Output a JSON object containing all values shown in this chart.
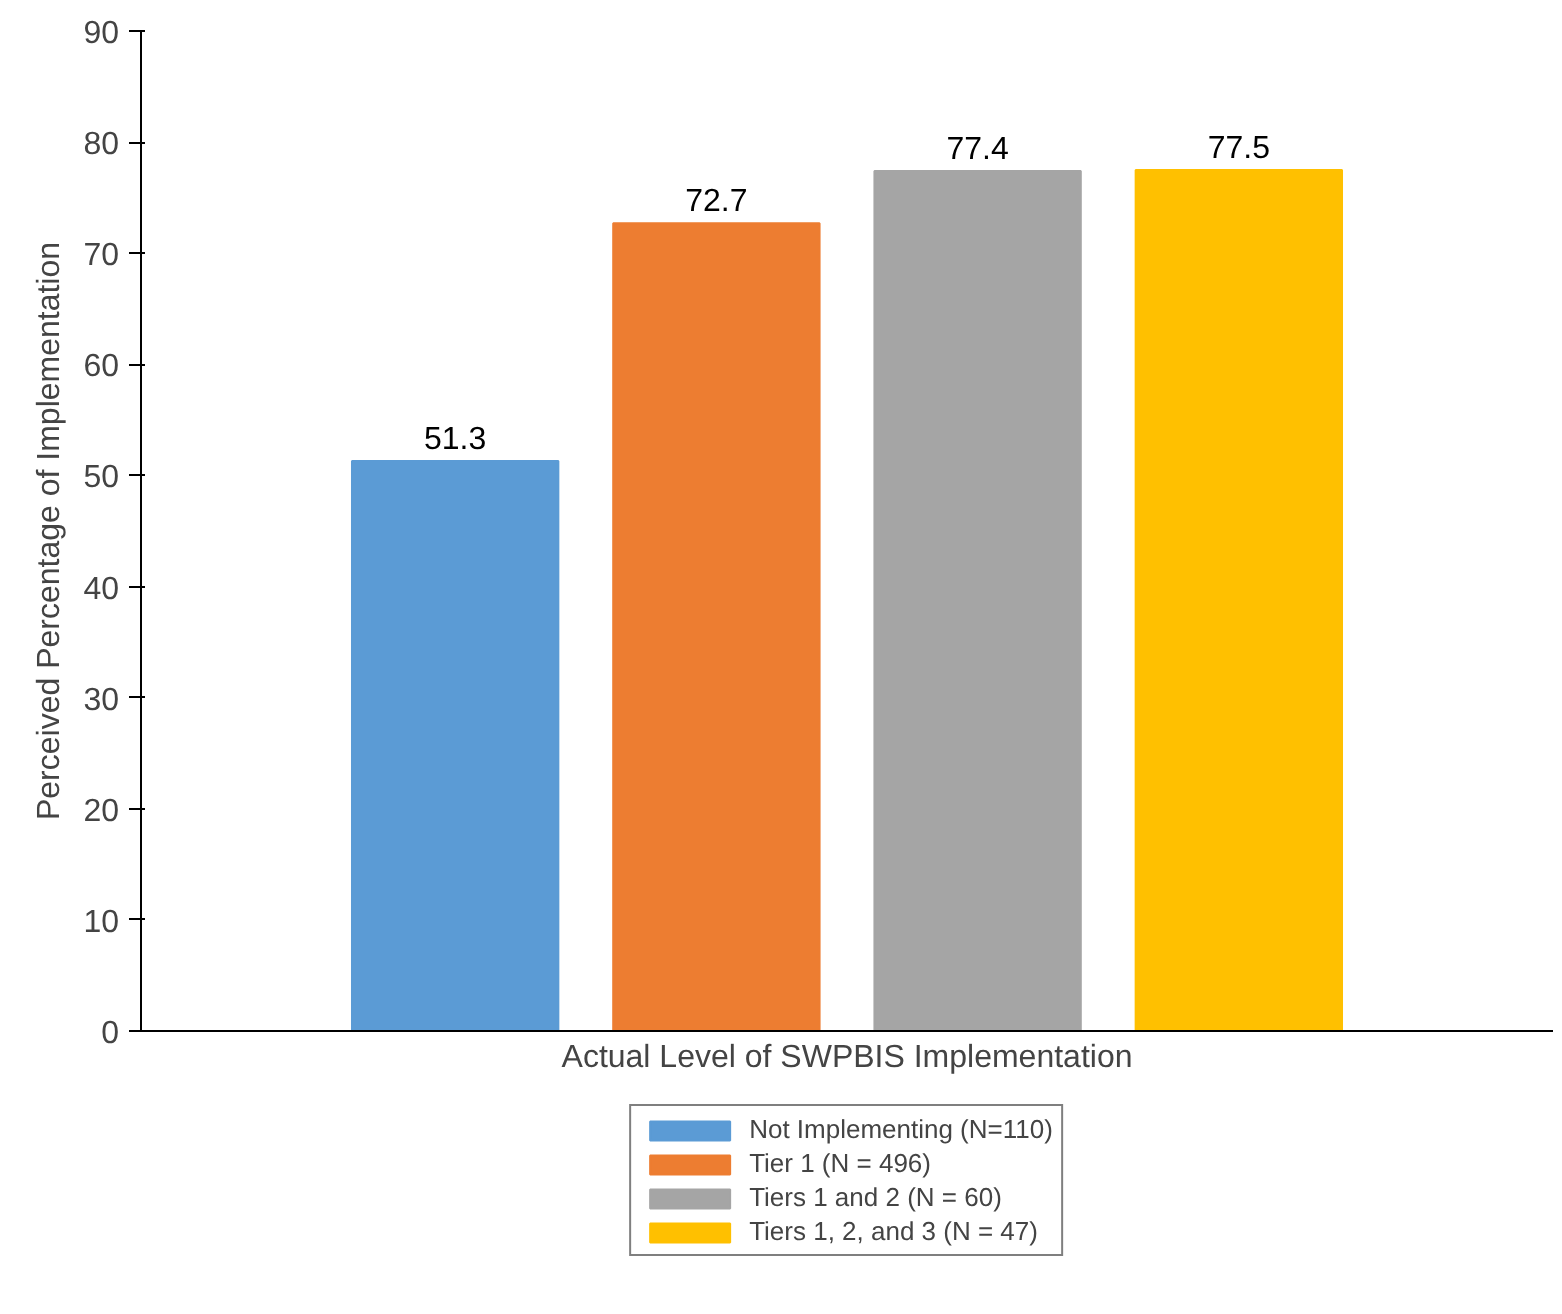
{
  "chart_data": {
    "type": "bar",
    "xlabel": "Actual Level of SWPBIS Implementation",
    "ylabel": "Perceived Percentage of Implementation",
    "categories": [
      null
    ],
    "series": [
      {
        "name": "Not Implementing (N=110)",
        "color": "#5b9bd5",
        "values": [
          51.3
        ]
      },
      {
        "name": "Tier 1 (N = 496)",
        "color": "#ed7d31",
        "values": [
          72.7
        ]
      },
      {
        "name": "Tiers 1 and 2 (N = 60)",
        "color": "#a5a5a5",
        "values": [
          77.4
        ]
      },
      {
        "name": "Tiers 1, 2, and 3 (N = 47)",
        "color": "#ffc000",
        "values": [
          77.5
        ]
      }
    ],
    "ylim": [
      0,
      90
    ],
    "yticks": [
      0,
      10,
      20,
      30,
      40,
      50,
      60,
      70,
      80,
      90
    ],
    "grid": false,
    "legend": "bottom",
    "data_labels": true
  }
}
